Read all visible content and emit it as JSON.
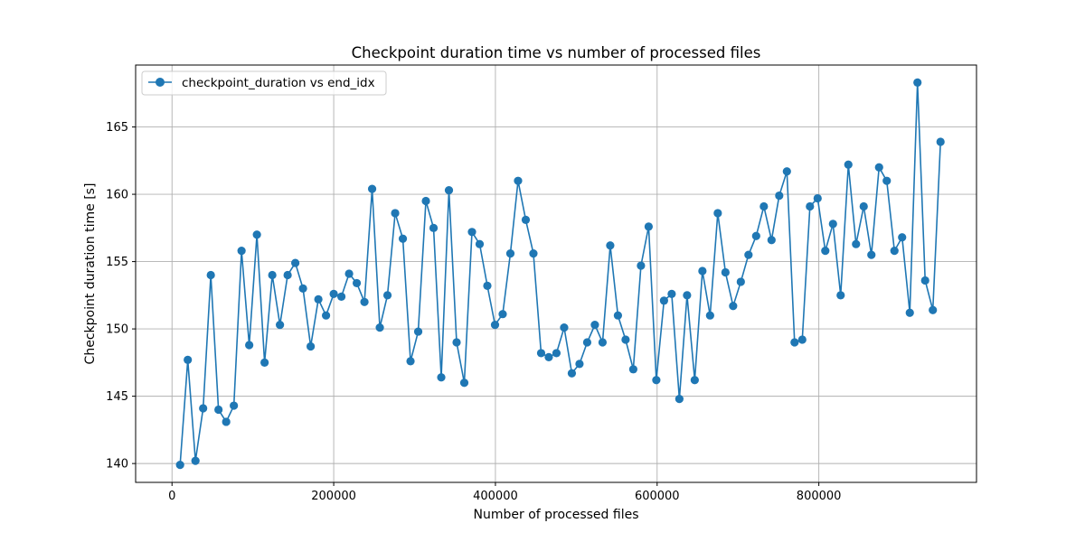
{
  "chart_data": {
    "type": "line",
    "title": "Checkpoint duration time vs number of processed files",
    "xlabel": "Number of processed files",
    "ylabel": "Checkpoint duration time [s]",
    "xlim": [
      -45000,
      995000
    ],
    "ylim": [
      138.6,
      169.6
    ],
    "xticks": [
      0,
      200000,
      400000,
      600000,
      800000
    ],
    "xtick_labels": [
      "0",
      "200000",
      "400000",
      "600000",
      "800000"
    ],
    "yticks": [
      140,
      145,
      150,
      155,
      160,
      165
    ],
    "ytick_labels": [
      "140",
      "145",
      "150",
      "155",
      "160",
      "165"
    ],
    "grid": true,
    "legend_position": "top-left",
    "colors": {
      "series": "#1f77b4",
      "grid": "#b0b0b0",
      "axis": "#000000"
    },
    "series": [
      {
        "name": "checkpoint_duration vs end_idx",
        "marker": "circle",
        "x": [
          10000,
          19500,
          29000,
          38500,
          48000,
          57500,
          67000,
          76500,
          86000,
          95500,
          105000,
          114500,
          124000,
          133500,
          143000,
          152500,
          162000,
          171500,
          181000,
          190500,
          200000,
          209500,
          219000,
          228500,
          238000,
          247500,
          257000,
          266500,
          276000,
          285500,
          295000,
          304500,
          314000,
          323500,
          333000,
          342500,
          352000,
          361500,
          371000,
          380500,
          390000,
          399500,
          409000,
          418500,
          428000,
          437500,
          447000,
          456500,
          466000,
          475500,
          485000,
          494500,
          504000,
          513500,
          523000,
          532500,
          542000,
          551500,
          561000,
          570500,
          580000,
          589500,
          599000,
          608500,
          618000,
          627500,
          637000,
          646500,
          656000,
          665500,
          675000,
          684500,
          694000,
          703500,
          713000,
          722500,
          732000,
          741500,
          751000,
          760500,
          770000,
          779500,
          789000,
          798500,
          808000,
          817500,
          827000,
          836500,
          846000,
          855500,
          865000,
          874500,
          884000,
          893500,
          903000,
          912500,
          922000,
          931500,
          941000,
          950500
        ],
        "y": [
          139.9,
          147.7,
          140.2,
          144.1,
          154.0,
          144.0,
          143.1,
          144.3,
          155.8,
          148.8,
          157.0,
          147.5,
          154.0,
          150.3,
          154.0,
          154.9,
          153.0,
          148.7,
          152.2,
          151.0,
          152.6,
          152.4,
          154.1,
          153.4,
          152.0,
          160.4,
          150.1,
          152.5,
          158.6,
          156.7,
          147.6,
          149.8,
          159.5,
          157.5,
          146.4,
          160.3,
          149.0,
          146.0,
          157.2,
          156.3,
          153.2,
          150.3,
          151.1,
          155.6,
          161.0,
          158.1,
          155.6,
          148.2,
          147.9,
          148.2,
          150.1,
          146.7,
          147.4,
          149.0,
          150.3,
          149.0,
          156.2,
          151.0,
          149.2,
          147.0,
          154.7,
          157.6,
          146.2,
          152.1,
          152.6,
          144.8,
          152.5,
          146.2,
          154.3,
          151.0,
          158.6,
          154.2,
          151.7,
          153.5,
          155.5,
          156.9,
          159.1,
          156.6,
          159.9,
          161.7,
          149.0,
          149.2,
          159.1,
          159.7,
          155.8,
          157.8,
          152.5,
          162.2,
          156.3,
          159.1,
          155.5,
          162.0,
          161.0,
          155.8,
          156.8,
          151.2,
          168.3,
          153.6,
          151.4,
          163.9
        ]
      }
    ]
  }
}
